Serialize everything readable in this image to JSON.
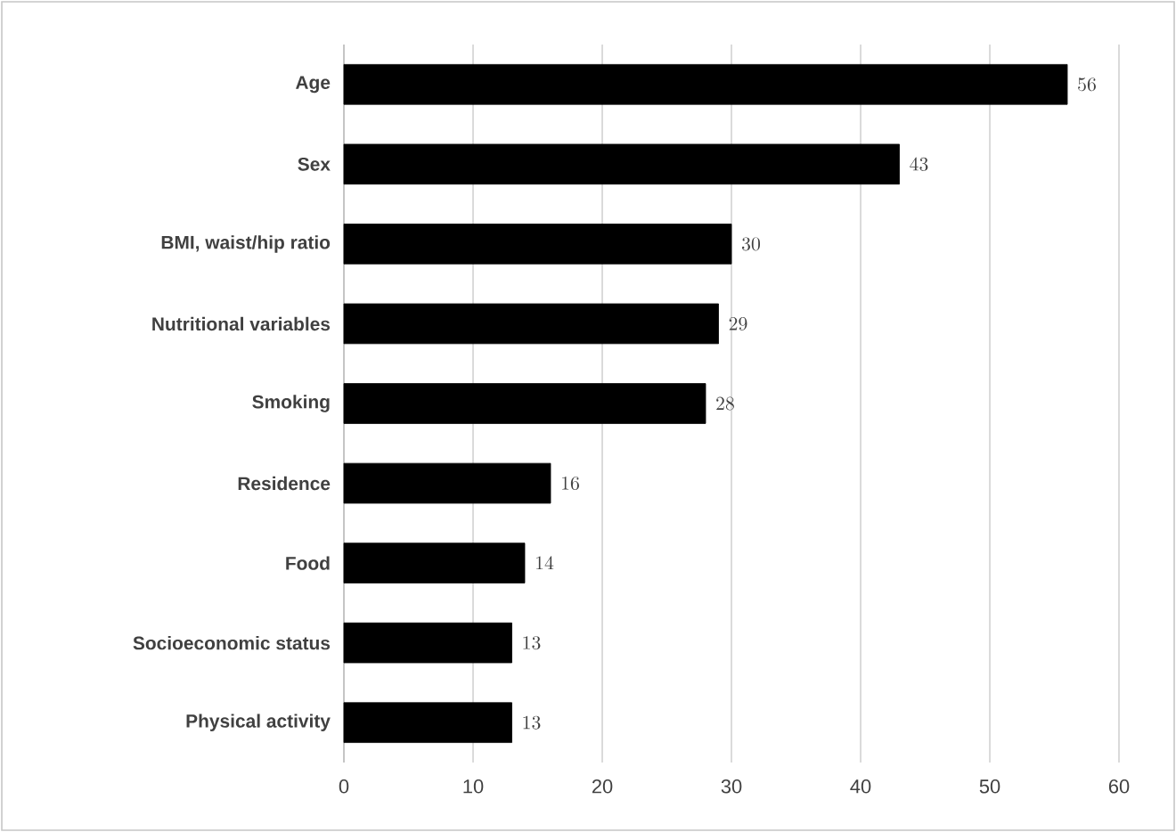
{
  "chart_data": {
    "type": "bar",
    "orientation": "horizontal",
    "categories": [
      "Age",
      "Sex",
      "BMI, waist/hip ratio",
      "Nutritional variables",
      "Smoking",
      "Residence",
      "Food",
      "Socioeconomic status",
      "Physical activity"
    ],
    "values": [
      56,
      43,
      30,
      29,
      28,
      16,
      14,
      13,
      13
    ],
    "color": "#000000",
    "xlim": [
      0,
      60
    ],
    "xticks": [
      0,
      10,
      20,
      30,
      40,
      50,
      60
    ],
    "grid": "x",
    "data_labels": true
  }
}
